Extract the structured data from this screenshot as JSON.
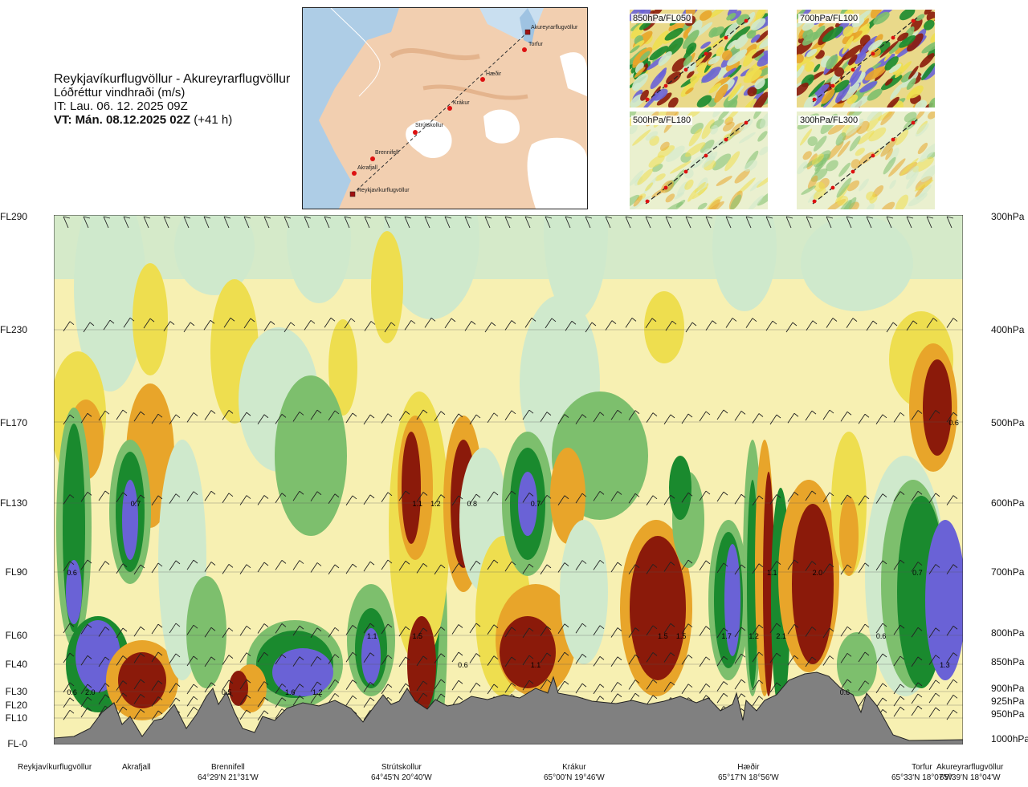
{
  "header": {
    "route": "Reykjavíkurflugvöllur - Akureyrarflugvöllur",
    "parameter": "Lóðréttur vindhraði (m/s)",
    "issue_time": "IT: Lau. 06. 12. 2025 09Z",
    "valid_time_bold": "VT: Mán. 08.12.2025 02Z",
    "valid_time_offset": "(+41 h)"
  },
  "route_map": {
    "points": [
      "Akureyrarflugvöllur",
      "Torfur",
      "Hæðir",
      "Krákur",
      "Strútskollur",
      "Brennifell",
      "Akrafjall",
      "Reykjavíkurflugvöllur"
    ]
  },
  "mini_maps": [
    "850hPa/FL050",
    "700hPa/FL100",
    "500hPa/FL180",
    "300hPa/FL300"
  ],
  "chart_data": {
    "type": "heatmap",
    "title": "Lóðréttur vindhraði (m/s)",
    "left_axis": [
      "FL290",
      "FL230",
      "FL170",
      "FL130",
      "FL90",
      "FL60",
      "FL40",
      "FL30",
      "FL20",
      "FL10",
      "FL-0"
    ],
    "right_axis": [
      "300hPa",
      "400hPa",
      "500hPa",
      "600hPa",
      "700hPa",
      "800hPa",
      "850hPa",
      "900hPa",
      "925hPa",
      "950hPa",
      "1000hPa"
    ],
    "stations": [
      {
        "name": "Reykjavíkurflugvöllur",
        "coord": ""
      },
      {
        "name": "Akrafjall",
        "coord": ""
      },
      {
        "name": "Brennifell",
        "coord": "64°29'N 21°31'W"
      },
      {
        "name": "Strútskollur",
        "coord": "64°45'N 20°40'W"
      },
      {
        "name": "Krákur",
        "coord": "65°00'N 19°46'W"
      },
      {
        "name": "Hæðir",
        "coord": "65°17'N 18°56'W"
      },
      {
        "name": "Torfur",
        "coord": "65°33'N 18°07'W"
      },
      {
        "name": "Akureyrarflugvöllur",
        "coord": "65°39'N 18°04'W"
      }
    ],
    "value_labels": [
      {
        "text": "0.6",
        "x": 0.02,
        "level": "FL90"
      },
      {
        "text": "0.7",
        "x": 0.09,
        "level": "FL130"
      },
      {
        "text": "0.6",
        "x": 0.02,
        "level": "FL30"
      },
      {
        "text": "2.0",
        "x": 0.04,
        "level": "FL30"
      },
      {
        "text": "0.5",
        "x": 0.19,
        "level": "FL30"
      },
      {
        "text": "1.6",
        "x": 0.26,
        "level": "FL30"
      },
      {
        "text": "1.2",
        "x": 0.29,
        "level": "FL30"
      },
      {
        "text": "1.1",
        "x": 0.35,
        "level": "FL60"
      },
      {
        "text": "1.5",
        "x": 0.4,
        "level": "FL60"
      },
      {
        "text": "1.1",
        "x": 0.4,
        "level": "FL130"
      },
      {
        "text": "1.2",
        "x": 0.42,
        "level": "FL130"
      },
      {
        "text": "0.8",
        "x": 0.46,
        "level": "FL130"
      },
      {
        "text": "0.6",
        "x": 0.45,
        "level": "FL40"
      },
      {
        "text": "0.7",
        "x": 0.53,
        "level": "FL130"
      },
      {
        "text": "1.1",
        "x": 0.53,
        "level": "FL40"
      },
      {
        "text": "1.5",
        "x": 0.67,
        "level": "FL60"
      },
      {
        "text": "1.5",
        "x": 0.69,
        "level": "FL60"
      },
      {
        "text": "1.7",
        "x": 0.74,
        "level": "FL60"
      },
      {
        "text": "1.2",
        "x": 0.77,
        "level": "FL60"
      },
      {
        "text": "2.1",
        "x": 0.8,
        "level": "FL60"
      },
      {
        "text": "1.1",
        "x": 0.79,
        "level": "FL90"
      },
      {
        "text": "2.0",
        "x": 0.84,
        "level": "FL90"
      },
      {
        "text": "0.6",
        "x": 0.87,
        "level": "FL30"
      },
      {
        "text": "0.6",
        "x": 0.91,
        "level": "FL60"
      },
      {
        "text": "0.7",
        "x": 0.95,
        "level": "FL90"
      },
      {
        "text": "1.3",
        "x": 0.98,
        "level": "FL40"
      },
      {
        "text": "0.6",
        "x": 0.99,
        "level": "FL170"
      }
    ],
    "colors": {
      "down_strong": "#8b1a0a",
      "down_mod": "#e8a52a",
      "down_weak": "#eede4f",
      "neutral": "#f7f0b2",
      "up_weak": "#cfe9cc",
      "up_mod": "#7dbf6d",
      "up_strong": "#1a8a2e",
      "up_very_strong": "#6a62d6",
      "terrain": "#808080"
    }
  }
}
